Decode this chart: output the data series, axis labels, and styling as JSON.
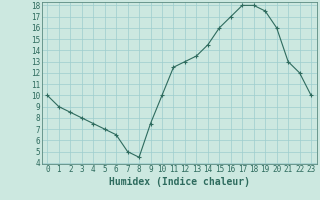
{
  "x": [
    0,
    1,
    2,
    3,
    4,
    5,
    6,
    7,
    8,
    9,
    10,
    11,
    12,
    13,
    14,
    15,
    16,
    17,
    18,
    19,
    20,
    21,
    22,
    23
  ],
  "y": [
    10,
    9,
    8.5,
    8,
    7.5,
    7,
    6.5,
    5,
    4.5,
    7.5,
    10,
    12.5,
    13,
    13.5,
    14.5,
    16,
    17,
    18,
    18,
    17.5,
    16,
    13,
    12,
    10
  ],
  "line_color": "#2e6b5e",
  "marker": "+",
  "marker_size": 3,
  "background_color": "#cce8e0",
  "grid_color": "#9ecece",
  "xlabel": "Humidex (Indice chaleur)",
  "xlabel_fontsize": 7,
  "ylim": [
    4,
    18
  ],
  "xlim": [
    -0.5,
    23.5
  ],
  "yticks": [
    4,
    5,
    6,
    7,
    8,
    9,
    10,
    11,
    12,
    13,
    14,
    15,
    16,
    17,
    18
  ],
  "xticks": [
    0,
    1,
    2,
    3,
    4,
    5,
    6,
    7,
    8,
    9,
    10,
    11,
    12,
    13,
    14,
    15,
    16,
    17,
    18,
    19,
    20,
    21,
    22,
    23
  ],
  "tick_fontsize": 5.5,
  "spine_color": "#5a8a80"
}
